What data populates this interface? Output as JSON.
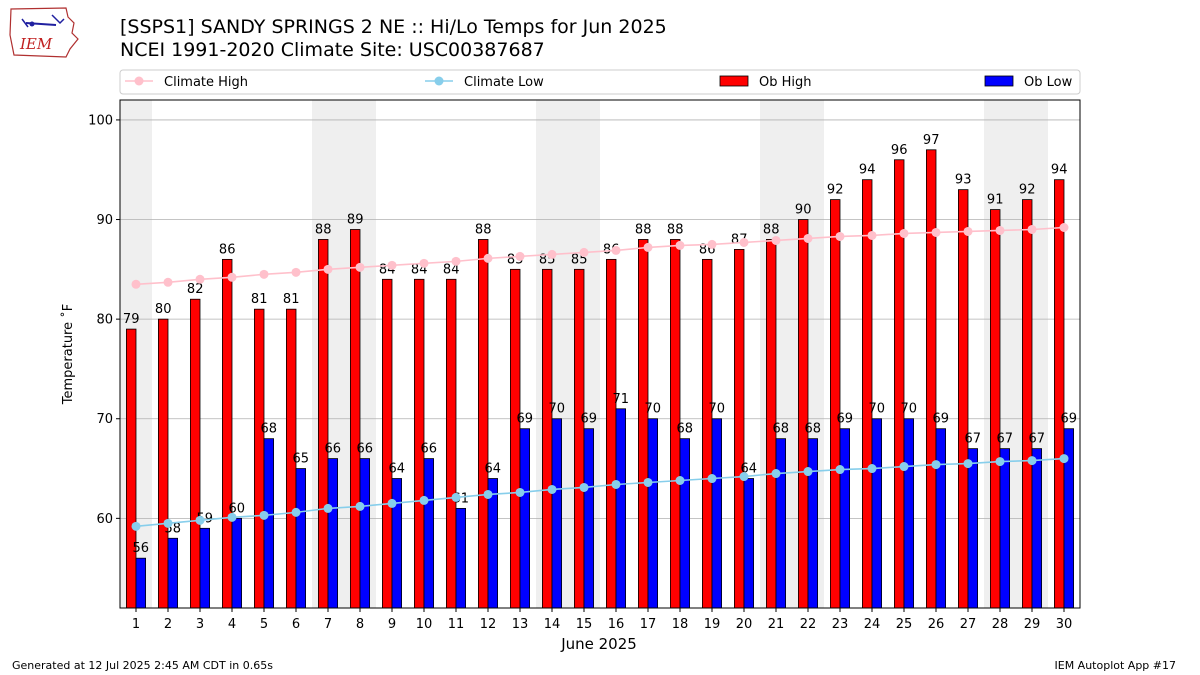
{
  "header": {
    "title_line1": "[SSPS1] SANDY SPRINGS 2 NE :: Hi/Lo Temps for Jun 2025",
    "title_line2": "NCEI 1991-2020 Climate Site: USC00387687",
    "logo_text": "IEM"
  },
  "footer": {
    "generated": "Generated at 12 Jul 2025 2:45 AM CDT in 0.65s",
    "app": "IEM Autoplot App #17"
  },
  "colors": {
    "ob_high": "#ff0000",
    "ob_low": "#0000ff",
    "climate_high": "#ffc0cb",
    "climate_low": "#87ceeb",
    "weekend_shade": "#efefef",
    "grid": "#b0b0b0"
  },
  "chart_data": {
    "type": "bar",
    "xlabel": "June 2025",
    "ylabel": "Temperature ˚F",
    "ylim": [
      51,
      102
    ],
    "yticks": [
      60,
      70,
      80,
      90,
      100
    ],
    "grid": "horizontal",
    "legend_position": "top",
    "shaded_days": [
      1,
      7,
      8,
      14,
      15,
      21,
      22,
      28,
      29
    ],
    "categories": [
      "1",
      "2",
      "3",
      "4",
      "5",
      "6",
      "7",
      "8",
      "9",
      "10",
      "11",
      "12",
      "13",
      "14",
      "15",
      "16",
      "17",
      "18",
      "19",
      "20",
      "21",
      "22",
      "23",
      "24",
      "25",
      "26",
      "27",
      "28",
      "29",
      "30"
    ],
    "series": [
      {
        "name": "Ob High",
        "kind": "bar",
        "values": [
          79,
          80,
          82,
          86,
          81,
          81,
          88,
          89,
          84,
          84,
          84,
          88,
          85,
          85,
          85,
          86,
          88,
          88,
          86,
          87,
          88,
          90,
          92,
          94,
          96,
          97,
          93,
          91,
          92,
          94
        ]
      },
      {
        "name": "Ob Low",
        "kind": "bar",
        "values": [
          56,
          58,
          59,
          60,
          68,
          65,
          66,
          66,
          64,
          66,
          61,
          64,
          69,
          70,
          69,
          71,
          70,
          68,
          70,
          64,
          68,
          68,
          69,
          70,
          70,
          69,
          67,
          67,
          67,
          69
        ]
      },
      {
        "name": "Climate High",
        "kind": "line",
        "values": [
          83.5,
          83.7,
          84.0,
          84.2,
          84.5,
          84.7,
          85.0,
          85.2,
          85.4,
          85.6,
          85.8,
          86.1,
          86.3,
          86.5,
          86.7,
          86.9,
          87.2,
          87.4,
          87.5,
          87.7,
          87.9,
          88.1,
          88.3,
          88.4,
          88.6,
          88.7,
          88.8,
          88.9,
          89.0,
          89.2
        ]
      },
      {
        "name": "Climate Low",
        "kind": "line",
        "values": [
          59.2,
          59.5,
          59.8,
          60.1,
          60.3,
          60.6,
          61.0,
          61.2,
          61.5,
          61.8,
          62.1,
          62.4,
          62.6,
          62.9,
          63.1,
          63.4,
          63.6,
          63.8,
          64.0,
          64.2,
          64.5,
          64.7,
          64.9,
          65.0,
          65.2,
          65.4,
          65.5,
          65.7,
          65.8,
          66.0
        ]
      }
    ]
  }
}
